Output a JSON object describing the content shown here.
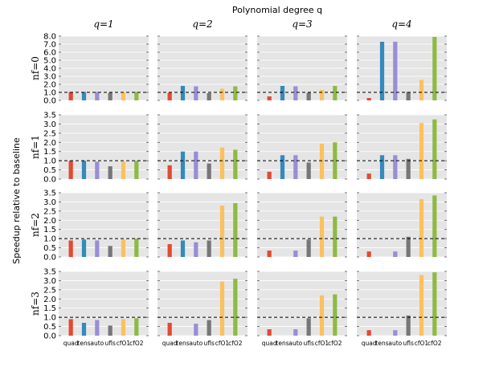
{
  "title": "Polynomial degree q",
  "ylabel": "Speedup relative to baseline",
  "chart_data": {
    "type": "bar",
    "categories": [
      "quad",
      "tens",
      "auto",
      "ufls",
      "cfO1",
      "cfO2"
    ],
    "colors": [
      "#e24a33",
      "#348abd",
      "#988ed5",
      "#777777",
      "#fbc15e",
      "#8eba42"
    ],
    "baseline": 1.0,
    "col_labels": [
      "q=1",
      "q=2",
      "q=3",
      "q=4"
    ],
    "row_labels": [
      "nf=0",
      "nf=1",
      "nf=2",
      "nf=3"
    ],
    "rows": [
      {
        "label": "nf=0",
        "ylim": [
          0,
          8
        ],
        "yticks": [
          "0.0",
          "1.0",
          "2.0",
          "3.0",
          "4.0",
          "5.0",
          "6.0",
          "7.0",
          "8.0"
        ],
        "ytick_values": [
          0,
          1,
          2,
          3,
          4,
          5,
          6,
          7,
          8
        ],
        "panels": [
          {
            "q": 1,
            "values": [
              1.05,
              1.05,
              1.05,
              0.95,
              1.0,
              1.05
            ]
          },
          {
            "q": 2,
            "values": [
              0.95,
              1.8,
              1.75,
              0.9,
              1.45,
              1.75
            ]
          },
          {
            "q": 3,
            "values": [
              0.5,
              1.8,
              1.75,
              0.95,
              1.3,
              1.8
            ]
          },
          {
            "q": 4,
            "values": [
              0.3,
              7.3,
              7.3,
              1.05,
              2.55,
              7.9
            ]
          }
        ]
      },
      {
        "label": "nf=1",
        "ylim": [
          0,
          3.5
        ],
        "yticks": [
          "0.0",
          "0.5",
          "1.0",
          "1.5",
          "2.0",
          "2.5",
          "3.0",
          "3.5"
        ],
        "ytick_values": [
          0,
          0.5,
          1,
          1.5,
          2,
          2.5,
          3,
          3.5
        ],
        "panels": [
          {
            "q": 1,
            "values": [
              1.0,
              1.0,
              0.95,
              0.7,
              0.95,
              1.0
            ]
          },
          {
            "q": 2,
            "values": [
              0.75,
              1.5,
              1.5,
              0.85,
              1.72,
              1.6
            ]
          },
          {
            "q": 3,
            "values": [
              0.4,
              1.3,
              1.3,
              0.9,
              1.93,
              2.0
            ]
          },
          {
            "q": 4,
            "values": [
              0.3,
              1.3,
              1.3,
              1.1,
              3.05,
              3.25
            ]
          }
        ]
      },
      {
        "label": "nf=2",
        "ylim": [
          0,
          3.5
        ],
        "yticks": [
          "0.0",
          "0.5",
          "1.0",
          "1.5",
          "2.0",
          "2.5",
          "3.0",
          "3.5"
        ],
        "ytick_values": [
          0,
          0.5,
          1,
          1.5,
          2,
          2.5,
          3,
          3.5
        ],
        "panels": [
          {
            "q": 1,
            "values": [
              0.9,
              0.95,
              0.9,
              0.6,
              0.95,
              1.0
            ]
          },
          {
            "q": 2,
            "values": [
              0.7,
              0.9,
              0.8,
              0.9,
              2.8,
              2.93
            ]
          },
          {
            "q": 3,
            "values": [
              0.35,
              0.0,
              0.35,
              0.95,
              2.2,
              2.2
            ]
          },
          {
            "q": 4,
            "values": [
              0.3,
              0.0,
              0.3,
              1.1,
              3.15,
              3.35
            ]
          }
        ]
      },
      {
        "label": "nf=3",
        "ylim": [
          0,
          3.5
        ],
        "yticks": [
          "0.0",
          "0.5",
          "1.0",
          "1.5",
          "2.0",
          "2.5",
          "3.0",
          "3.5"
        ],
        "ytick_values": [
          0,
          0.5,
          1,
          1.5,
          2,
          2.5,
          3,
          3.5
        ],
        "panels": [
          {
            "q": 1,
            "values": [
              0.9,
              0.7,
              0.85,
              0.55,
              0.9,
              0.95
            ]
          },
          {
            "q": 2,
            "values": [
              0.7,
              0.0,
              0.65,
              0.85,
              2.95,
              3.1
            ]
          },
          {
            "q": 3,
            "values": [
              0.35,
              0.0,
              0.35,
              0.95,
              2.2,
              2.25
            ]
          },
          {
            "q": 4,
            "values": [
              0.3,
              0.0,
              0.3,
              1.1,
              3.3,
              3.45
            ]
          }
        ]
      }
    ]
  }
}
